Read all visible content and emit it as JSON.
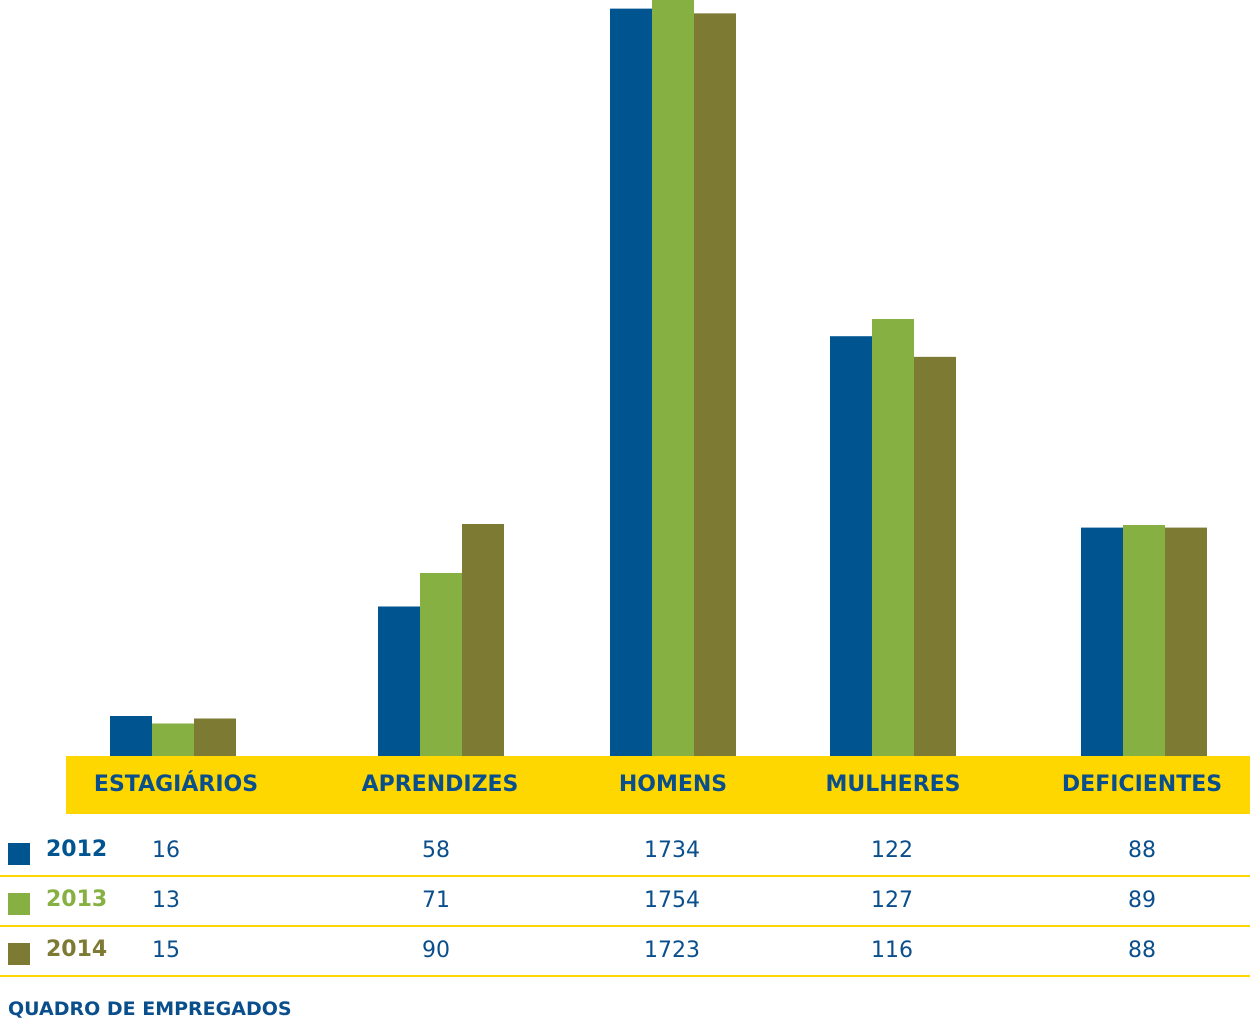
{
  "chart_data": {
    "type": "bar",
    "categories": [
      "ESTAGIÁRIOS",
      "APRENDIZES",
      "HOMENS",
      "MULHERES",
      "DEFICIENTES"
    ],
    "series": [
      {
        "name": "2012",
        "color": "#005591",
        "values": [
          16,
          58,
          1734,
          122,
          88
        ],
        "labels": [
          "16",
          "58",
          "1734",
          "122",
          "88"
        ]
      },
      {
        "name": "2013",
        "color": "#86B142",
        "values": [
          13,
          71,
          1754,
          127,
          89
        ],
        "labels": [
          "13",
          "71",
          "1754",
          "127",
          "89"
        ]
      },
      {
        "name": "2014",
        "color": "#7D7A34",
        "values": [
          15,
          90,
          1723,
          116,
          88
        ],
        "labels": [
          "15",
          "90",
          "1723",
          "116",
          "88"
        ]
      }
    ],
    "title": "",
    "xlabel": "",
    "ylabel": "",
    "grid": false,
    "legend": "table-left"
  },
  "footer": {
    "caption": "QUADRO DE EMPREGADOS"
  },
  "colors": {
    "band": "#FFD700",
    "text": "#0A4F8C"
  }
}
